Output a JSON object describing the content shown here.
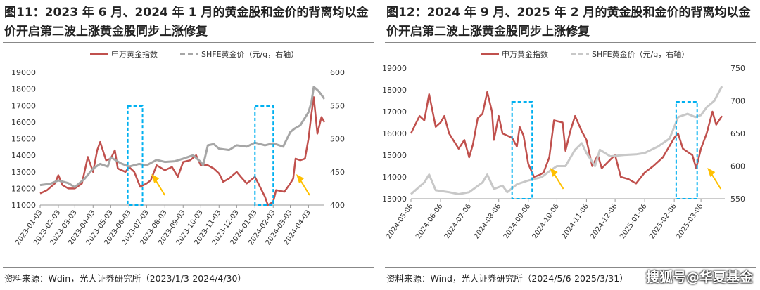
{
  "watermark": "搜狐号@华夏基金",
  "chart_data": [
    {
      "type": "line",
      "title": "图11：2023 年 6 月、2024 年 1 月的黄金股和金价的背离均以金价开启第二波上涨黄金股同步上涨修复",
      "source": "资料来源：Wdin，光大证券研究所（2023/1/3-2024/4/30）",
      "legend": [
        "申万黄金指数",
        "SHFE黄金价（元/g，右轴）"
      ],
      "ylim": [
        11000,
        19000
      ],
      "yticks": [
        "11000",
        "12000",
        "13000",
        "14000",
        "15000",
        "16000",
        "17000",
        "18000",
        "19000"
      ],
      "y2lim": [
        400,
        600
      ],
      "y2ticks": [
        "400",
        "450",
        "500",
        "550",
        "600"
      ],
      "xlim": [
        "2023-01-03",
        "2024-04-30"
      ],
      "xticks": [
        "2023-01-03",
        "2023-02-03",
        "2023-03-03",
        "2023-04-03",
        "2023-05-03",
        "2023-06-03",
        "2023-07-03",
        "2023-08-03",
        "2023-09-03",
        "2023-10-03",
        "2023-11-03",
        "2023-12-03",
        "2024-01-03",
        "2024-02-03",
        "2024-03-03",
        "2024-04-03"
      ],
      "highlight_ranges": [
        [
          "2023-06-01",
          "2023-06-26"
        ],
        [
          "2024-01-03",
          "2024-02-03"
        ]
      ],
      "arrows": [
        "2023-07-10",
        "2024-03-12"
      ],
      "series": [
        {
          "name": "申万黄金指数",
          "axis": "left",
          "color": "#c0504d",
          "points": [
            [
              "2023-01-03",
              11700
            ],
            [
              "2023-01-15",
              11900
            ],
            [
              "2023-01-28",
              12300
            ],
            [
              "2023-02-03",
              12800
            ],
            [
              "2023-02-10",
              12200
            ],
            [
              "2023-02-20",
              12000
            ],
            [
              "2023-03-03",
              12000
            ],
            [
              "2023-03-15",
              12300
            ],
            [
              "2023-03-25",
              13900
            ],
            [
              "2023-04-03",
              13000
            ],
            [
              "2023-04-10",
              14300
            ],
            [
              "2023-04-15",
              14800
            ],
            [
              "2023-04-25",
              13700
            ],
            [
              "2023-05-03",
              13800
            ],
            [
              "2023-05-10",
              14300
            ],
            [
              "2023-05-15",
              13200
            ],
            [
              "2023-05-28",
              13000
            ],
            [
              "2023-06-03",
              13300
            ],
            [
              "2023-06-12",
              13000
            ],
            [
              "2023-06-22",
              12100
            ],
            [
              "2023-07-03",
              12300
            ],
            [
              "2023-07-10",
              12500
            ],
            [
              "2023-07-20",
              13400
            ],
            [
              "2023-08-03",
              13100
            ],
            [
              "2023-08-15",
              13300
            ],
            [
              "2023-08-25",
              12700
            ],
            [
              "2023-09-03",
              13600
            ],
            [
              "2023-09-15",
              13700
            ],
            [
              "2023-09-25",
              14000
            ],
            [
              "2023-10-03",
              13400
            ],
            [
              "2023-10-15",
              13400
            ],
            [
              "2023-10-25",
              13200
            ],
            [
              "2023-11-03",
              12900
            ],
            [
              "2023-11-10",
              12400
            ],
            [
              "2023-11-20",
              12600
            ],
            [
              "2023-12-03",
              13000
            ],
            [
              "2023-12-10",
              12700
            ],
            [
              "2023-12-20",
              12300
            ],
            [
              "2024-01-03",
              12700
            ],
            [
              "2024-01-10",
              12200
            ],
            [
              "2024-01-20",
              11500
            ],
            [
              "2024-01-25",
              11000
            ],
            [
              "2024-02-03",
              11200
            ],
            [
              "2024-02-08",
              11900
            ],
            [
              "2024-02-22",
              11800
            ],
            [
              "2024-03-03",
              12300
            ],
            [
              "2024-03-08",
              12600
            ],
            [
              "2024-03-12",
              13800
            ],
            [
              "2024-03-20",
              13700
            ],
            [
              "2024-03-28",
              13800
            ],
            [
              "2024-04-03",
              15000
            ],
            [
              "2024-04-08",
              16500
            ],
            [
              "2024-04-12",
              17500
            ],
            [
              "2024-04-18",
              15300
            ],
            [
              "2024-04-25",
              16300
            ],
            [
              "2024-04-30",
              16000
            ]
          ]
        },
        {
          "name": "SHFE黄金价（元/g，右轴）",
          "axis": "right",
          "color": "#a6a6a6",
          "points": [
            [
              "2023-01-03",
              430
            ],
            [
              "2023-01-20",
              432
            ],
            [
              "2023-02-03",
              437
            ],
            [
              "2023-02-20",
              433
            ],
            [
              "2023-03-03",
              427
            ],
            [
              "2023-03-20",
              440
            ],
            [
              "2023-04-03",
              455
            ],
            [
              "2023-04-15",
              462
            ],
            [
              "2023-04-28",
              458
            ],
            [
              "2023-05-03",
              472
            ],
            [
              "2023-05-20",
              463
            ],
            [
              "2023-06-03",
              458
            ],
            [
              "2023-06-20",
              462
            ],
            [
              "2023-07-03",
              460
            ],
            [
              "2023-07-20",
              468
            ],
            [
              "2023-08-03",
              465
            ],
            [
              "2023-08-20",
              466
            ],
            [
              "2023-09-03",
              470
            ],
            [
              "2023-09-20",
              475
            ],
            [
              "2023-10-03",
              465
            ],
            [
              "2023-10-07",
              460
            ],
            [
              "2023-10-15",
              490
            ],
            [
              "2023-10-25",
              492
            ],
            [
              "2023-11-03",
              485
            ],
            [
              "2023-11-20",
              483
            ],
            [
              "2023-12-03",
              490
            ],
            [
              "2023-12-20",
              488
            ],
            [
              "2024-01-03",
              494
            ],
            [
              "2024-01-20",
              490
            ],
            [
              "2024-02-03",
              493
            ],
            [
              "2024-02-20",
              488
            ],
            [
              "2024-03-03",
              510
            ],
            [
              "2024-03-10",
              515
            ],
            [
              "2024-03-20",
              520
            ],
            [
              "2024-04-03",
              540
            ],
            [
              "2024-04-08",
              555
            ],
            [
              "2024-04-12",
              578
            ],
            [
              "2024-04-20",
              572
            ],
            [
              "2024-04-30",
              560
            ]
          ]
        }
      ]
    },
    {
      "type": "line",
      "title": "图12：2024 年 9 月、2025 年 2 月的黄金股和金价的背离均以金价开启第二波上涨黄金股同步上涨修复",
      "source": "资料来源：Wind，光大证券研究所（2024/5/6-2025/3/31）",
      "legend": [
        "申万黄金指数",
        "SHFE黄金价（元/g，右轴）"
      ],
      "ylim": [
        13000,
        19000
      ],
      "yticks": [
        "13000",
        "14000",
        "15000",
        "16000",
        "17000",
        "18000",
        "19000"
      ],
      "y2lim": [
        550,
        750
      ],
      "y2ticks": [
        "550",
        "600",
        "650",
        "700",
        "750"
      ],
      "xlim": [
        "2024-05-06",
        "2025-03-31"
      ],
      "xticks": [
        "2024-05-06",
        "2024-06-06",
        "2024-07-06",
        "2024-08-06",
        "2024-09-06",
        "2024-10-06",
        "2024-11-06",
        "2024-12-06",
        "2025-01-06",
        "2025-02-06",
        "2025-03-06"
      ],
      "highlight_ranges": [
        [
          "2024-08-20",
          "2024-09-10"
        ],
        [
          "2025-02-08",
          "2025-03-02"
        ]
      ],
      "arrows": [
        "2024-09-28",
        "2025-03-12"
      ],
      "series": [
        {
          "name": "申万黄金指数",
          "axis": "left",
          "color": "#c0504d",
          "points": [
            [
              "2024-05-06",
              16000
            ],
            [
              "2024-05-15",
              16800
            ],
            [
              "2024-05-20",
              16600
            ],
            [
              "2024-05-25",
              17800
            ],
            [
              "2024-06-01",
              16300
            ],
            [
              "2024-06-06",
              16500
            ],
            [
              "2024-06-10",
              16800
            ],
            [
              "2024-06-15",
              16000
            ],
            [
              "2024-06-25",
              15300
            ],
            [
              "2024-07-01",
              15700
            ],
            [
              "2024-07-06",
              14900
            ],
            [
              "2024-07-10",
              15500
            ],
            [
              "2024-07-15",
              16700
            ],
            [
              "2024-07-20",
              16900
            ],
            [
              "2024-07-25",
              17900
            ],
            [
              "2024-07-30",
              17000
            ],
            [
              "2024-08-01",
              15700
            ],
            [
              "2024-08-06",
              16800
            ],
            [
              "2024-08-10",
              16000
            ],
            [
              "2024-08-20",
              15800
            ],
            [
              "2024-08-25",
              15400
            ],
            [
              "2024-08-28",
              16300
            ],
            [
              "2024-09-01",
              15900
            ],
            [
              "2024-09-06",
              14600
            ],
            [
              "2024-09-12",
              14000
            ],
            [
              "2024-09-18",
              14100
            ],
            [
              "2024-09-22",
              14200
            ],
            [
              "2024-09-28",
              14900
            ],
            [
              "2024-10-03",
              16600
            ],
            [
              "2024-10-12",
              16500
            ],
            [
              "2024-10-15",
              15200
            ],
            [
              "2024-10-20",
              16100
            ],
            [
              "2024-10-25",
              16800
            ],
            [
              "2024-11-01",
              16100
            ],
            [
              "2024-11-06",
              15700
            ],
            [
              "2024-11-12",
              14500
            ],
            [
              "2024-11-18",
              15000
            ],
            [
              "2024-11-22",
              14400
            ],
            [
              "2024-12-01",
              14800
            ],
            [
              "2024-12-06",
              15000
            ],
            [
              "2024-12-12",
              14000
            ],
            [
              "2024-12-20",
              13900
            ],
            [
              "2024-12-28",
              13700
            ],
            [
              "2025-01-06",
              14200
            ],
            [
              "2025-01-15",
              14500
            ],
            [
              "2025-01-25",
              14900
            ],
            [
              "2025-02-06",
              15800
            ],
            [
              "2025-02-10",
              16000
            ],
            [
              "2025-02-15",
              15300
            ],
            [
              "2025-02-25",
              15000
            ],
            [
              "2025-03-01",
              14400
            ],
            [
              "2025-03-06",
              15300
            ],
            [
              "2025-03-12",
              16000
            ],
            [
              "2025-03-18",
              17000
            ],
            [
              "2025-03-22",
              16400
            ],
            [
              "2025-03-28",
              16800
            ]
          ]
        },
        {
          "name": "SHFE黄金价（元/g，右轴）",
          "axis": "right",
          "color": "#c8c8c8",
          "points": [
            [
              "2024-05-06",
              557
            ],
            [
              "2024-05-20",
              575
            ],
            [
              "2024-05-25",
              587
            ],
            [
              "2024-06-01",
              563
            ],
            [
              "2024-06-15",
              560
            ],
            [
              "2024-06-25",
              557
            ],
            [
              "2024-07-06",
              560
            ],
            [
              "2024-07-20",
              575
            ],
            [
              "2024-07-25",
              587
            ],
            [
              "2024-08-01",
              565
            ],
            [
              "2024-08-10",
              570
            ],
            [
              "2024-08-15",
              560
            ],
            [
              "2024-08-25",
              572
            ],
            [
              "2024-09-06",
              578
            ],
            [
              "2024-09-20",
              583
            ],
            [
              "2024-09-28",
              592
            ],
            [
              "2024-10-06",
              600
            ],
            [
              "2024-10-15",
              600
            ],
            [
              "2024-10-25",
              625
            ],
            [
              "2024-11-01",
              635
            ],
            [
              "2024-11-06",
              620
            ],
            [
              "2024-11-15",
              600
            ],
            [
              "2024-11-20",
              625
            ],
            [
              "2024-12-01",
              615
            ],
            [
              "2024-12-15",
              617
            ],
            [
              "2024-12-28",
              618
            ],
            [
              "2025-01-06",
              620
            ],
            [
              "2025-01-20",
              630
            ],
            [
              "2025-02-01",
              642
            ],
            [
              "2025-02-06",
              660
            ],
            [
              "2025-02-10",
              675
            ],
            [
              "2025-02-20",
              680
            ],
            [
              "2025-02-28",
              675
            ],
            [
              "2025-03-06",
              678
            ],
            [
              "2025-03-12",
              690
            ],
            [
              "2025-03-20",
              700
            ],
            [
              "2025-03-28",
              722
            ]
          ]
        }
      ]
    }
  ]
}
